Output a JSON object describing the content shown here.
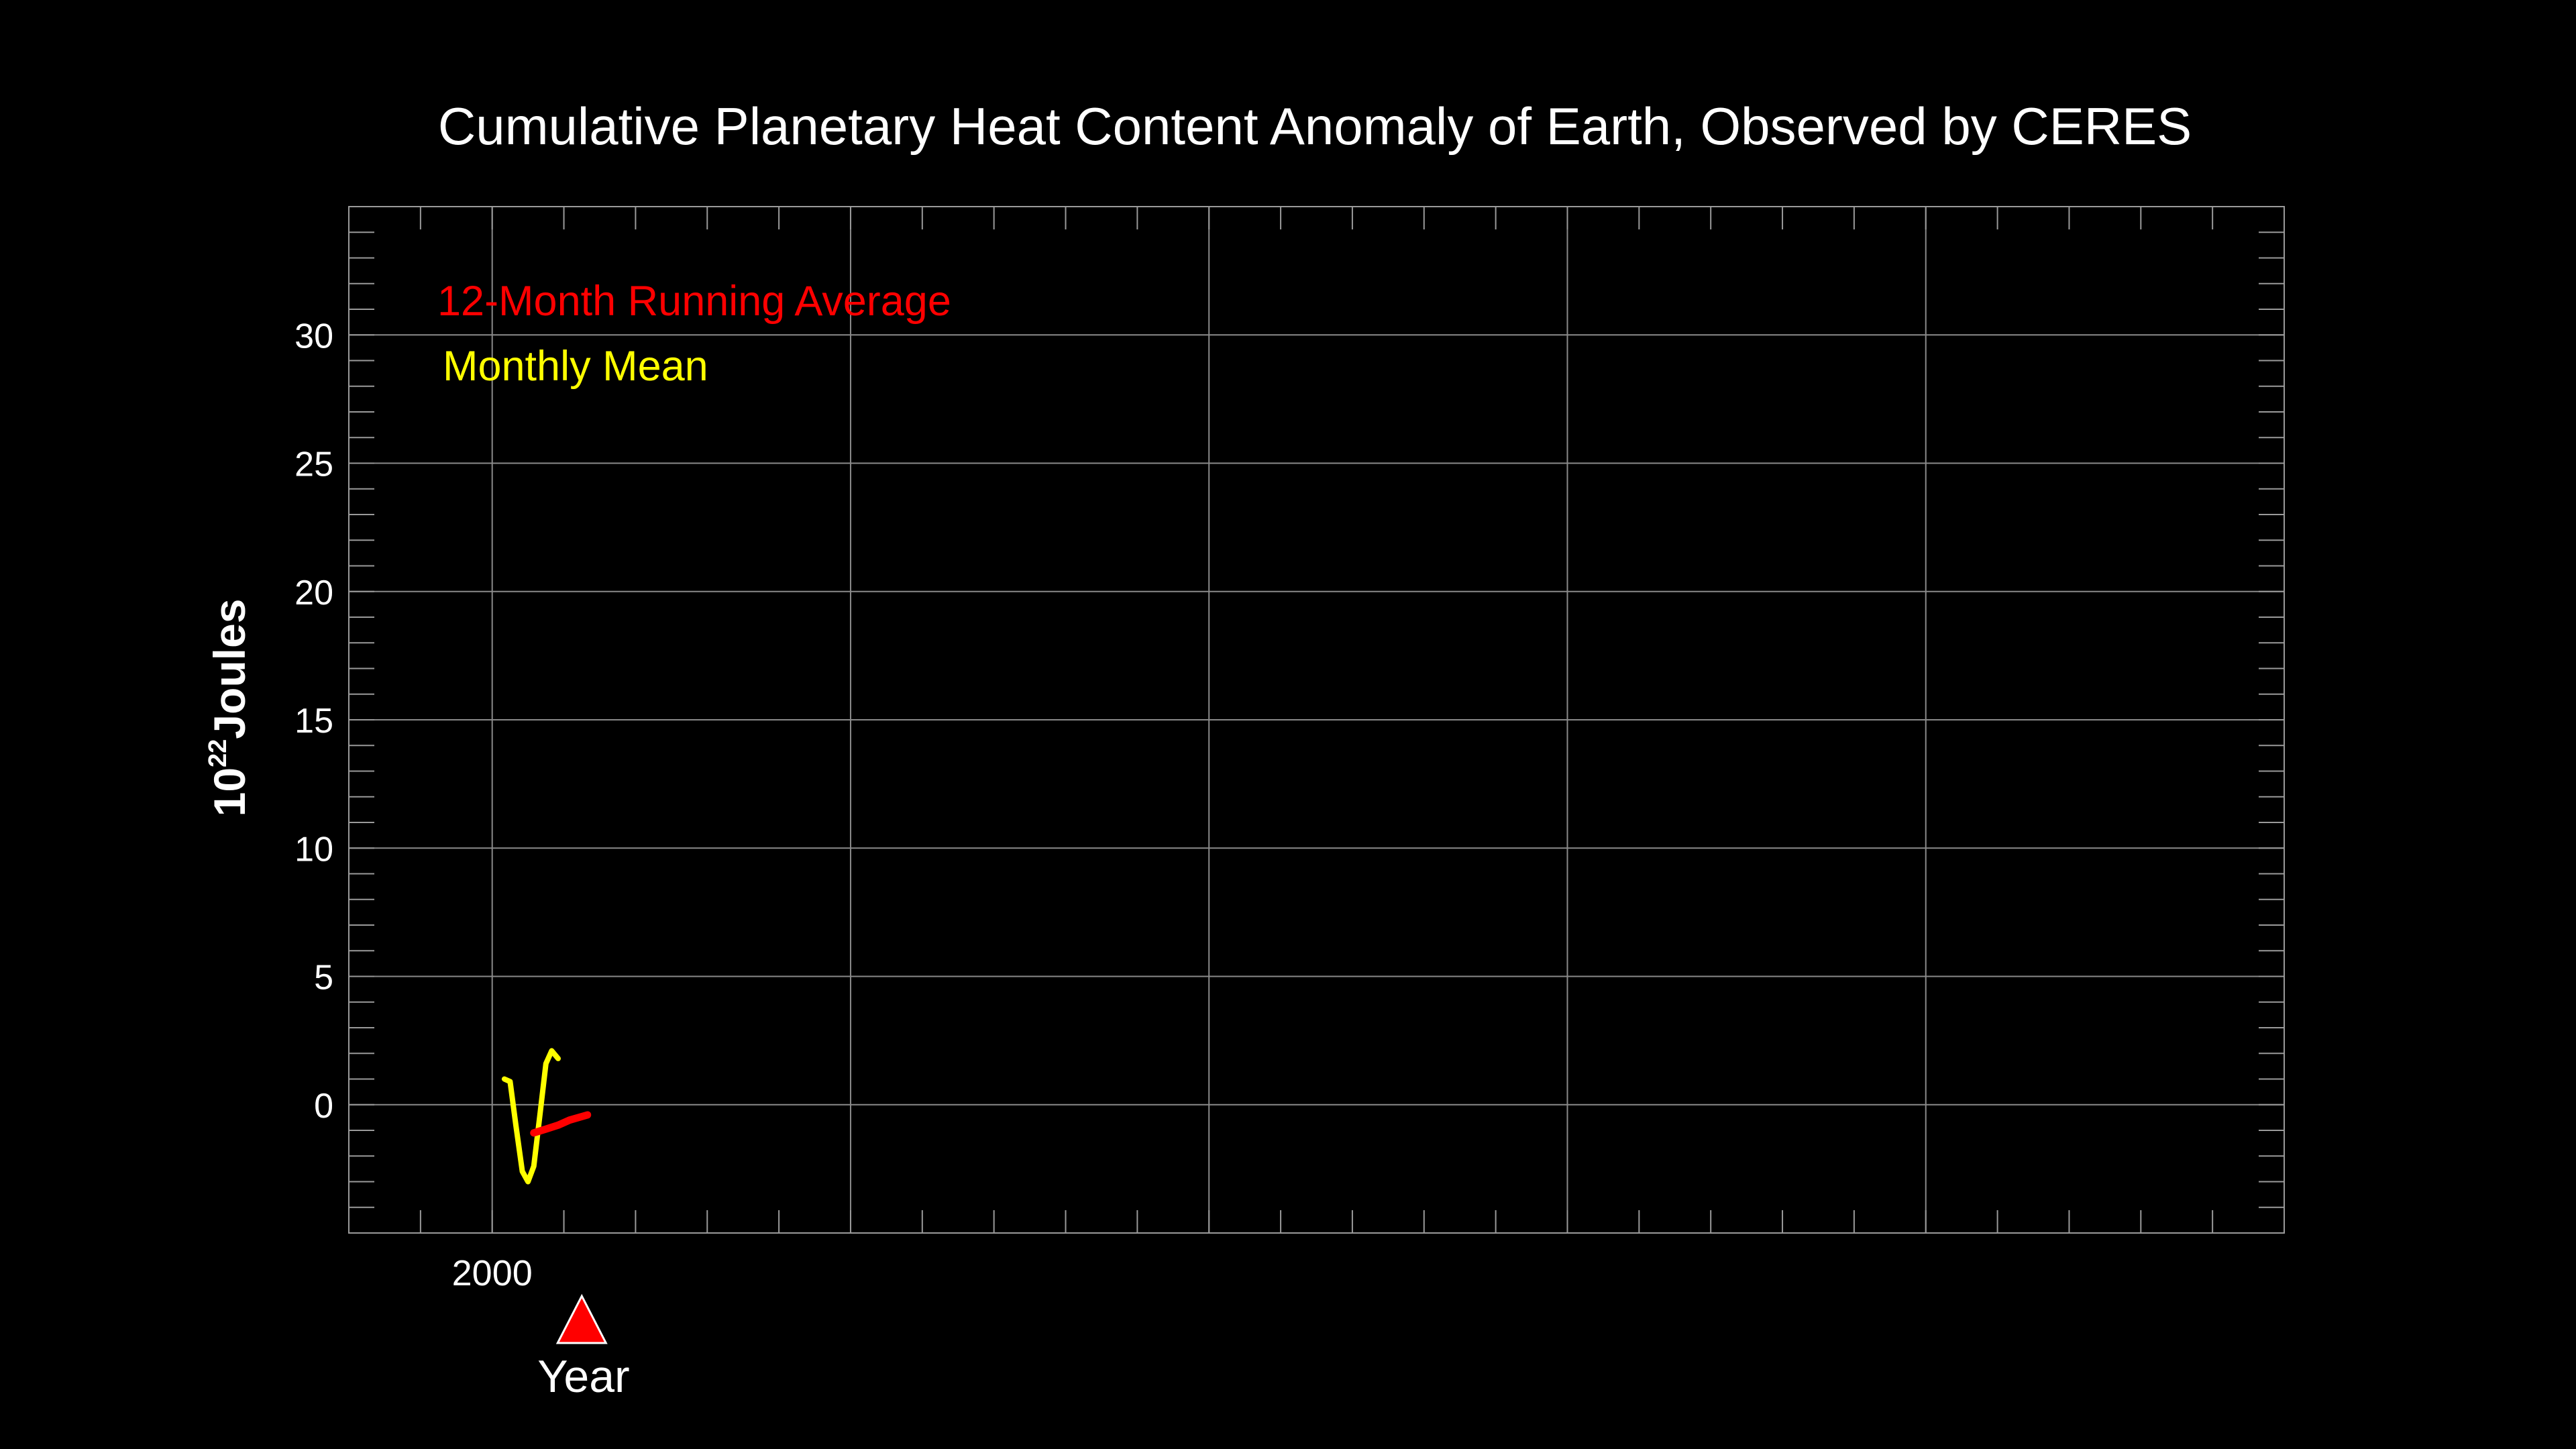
{
  "chart_data": {
    "type": "line",
    "title": "Cumulative Planetary Heat Content Anomaly of Earth, Observed by CERES",
    "xlabel": "Year",
    "ylabel": {
      "base": "10",
      "exponent": "22",
      "unit": "Joules"
    },
    "xlim": [
      1998,
      2025
    ],
    "ylim": [
      -5,
      35
    ],
    "x_major_ticks": [
      2000,
      2005,
      2010,
      2015,
      2020
    ],
    "x_tick_labels": [
      {
        "value": 2000,
        "label": "2000"
      }
    ],
    "x_minor_step": 1,
    "y_major_ticks": [
      0,
      5,
      10,
      15,
      20,
      25,
      30
    ],
    "y_tick_labels": [
      "0",
      "5",
      "10",
      "15",
      "20",
      "25",
      "30"
    ],
    "y_minor_step": 1,
    "grid": true,
    "current_marker": {
      "shape": "triangle",
      "x": 2001.25,
      "color": "#FF0000"
    },
    "legend": {
      "placement": "top-left",
      "entries": [
        {
          "label": "12-Month Running Average",
          "color": "#FF0000"
        },
        {
          "label": "Monthly Mean",
          "color": "#FFFF00"
        }
      ]
    },
    "series": [
      {
        "name": "Monthly Mean",
        "color": "#FFFF00",
        "x": [
          2000.17,
          2000.25,
          2000.33,
          2000.42,
          2000.5,
          2000.58,
          2000.67,
          2000.75,
          2000.83,
          2000.92,
          2001.0,
          2001.08,
          2001.17,
          2001.25,
          2001.33
        ],
        "y": [
          1.0,
          0.9,
          -0.8,
          -2.6,
          -3.0,
          -2.4,
          -0.3,
          1.6,
          2.1,
          1.8,
          null,
          null,
          null,
          null,
          null
        ]
      },
      {
        "name": "12-Month Running Average",
        "color": "#FF0000",
        "x": [
          2000.58,
          2000.75,
          2000.92,
          2001.08,
          2001.33
        ],
        "y": [
          -1.1,
          -0.95,
          -0.8,
          -0.6,
          -0.4
        ]
      }
    ]
  }
}
